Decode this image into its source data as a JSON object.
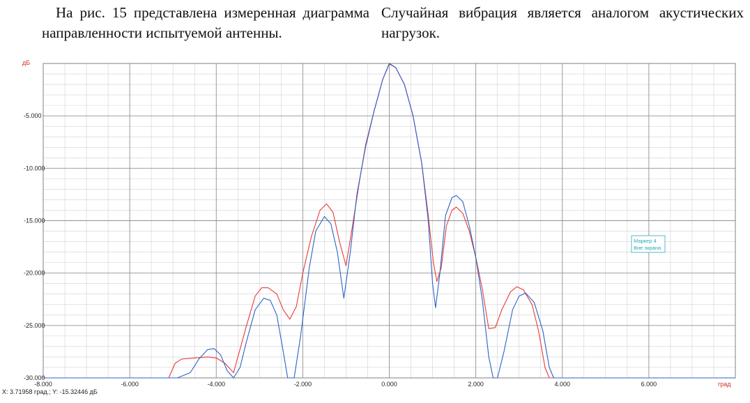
{
  "paragraphs": {
    "left": "На рис. 15 представлена измеренная диаграмма направленности испытуемой антенны.",
    "right": "Случайная вибрация является аналогом акустических нагрузок."
  },
  "chart_data": {
    "type": "line",
    "ylabel": "дБ",
    "xlabel": "град",
    "xlim": [
      -8,
      8
    ],
    "ylim": [
      -30,
      0
    ],
    "x_ticks": [
      "-8.000",
      "-6.000",
      "-4.000",
      "-2.000",
      "0.000",
      "2.000",
      "4.000",
      "6.000"
    ],
    "y_ticks": [
      "-5.000",
      "-10.000",
      "-15.000",
      "-20.000",
      "-25.000",
      "-30.000"
    ],
    "grid": true,
    "readout": "X: 3.71958 град.; Y: -15.32446 дБ",
    "marker_box": {
      "line1": "Маркер 4",
      "line2": "Вне экрана"
    },
    "colors": {
      "series_red": "#e83a3a",
      "series_blue": "#2c62c8",
      "grid": "#d0d0d0",
      "grid_major": "#909090",
      "axis_unit": "#d03020",
      "marker": "#2aa8b8"
    },
    "series": [
      {
        "color": "red",
        "points": [
          [
            -8,
            -30
          ],
          [
            -5.1,
            -30
          ],
          [
            -4.95,
            -28.6
          ],
          [
            -4.8,
            -28.2
          ],
          [
            -4.5,
            -28.1
          ],
          [
            -4.2,
            -28.0
          ],
          [
            -4.0,
            -28.1
          ],
          [
            -3.8,
            -28.6
          ],
          [
            -3.6,
            -29.5
          ],
          [
            -3.5,
            -28.0
          ],
          [
            -3.3,
            -25.0
          ],
          [
            -3.1,
            -22.2
          ],
          [
            -2.95,
            -21.4
          ],
          [
            -2.8,
            -21.4
          ],
          [
            -2.6,
            -22.0
          ],
          [
            -2.45,
            -23.5
          ],
          [
            -2.3,
            -24.4
          ],
          [
            -2.15,
            -23.2
          ],
          [
            -2.0,
            -20.0
          ],
          [
            -1.8,
            -16.5
          ],
          [
            -1.6,
            -14.0
          ],
          [
            -1.45,
            -13.4
          ],
          [
            -1.3,
            -14.2
          ],
          [
            -1.15,
            -17.0
          ],
          [
            -1.0,
            -19.3
          ],
          [
            -0.85,
            -15.5
          ],
          [
            -0.7,
            -11.5
          ],
          [
            -0.55,
            -7.8
          ],
          [
            -0.35,
            -4.5
          ],
          [
            -0.15,
            -1.5
          ],
          [
            0.0,
            -0.05
          ],
          [
            0.15,
            -0.4
          ],
          [
            0.35,
            -2.0
          ],
          [
            0.55,
            -5.0
          ],
          [
            0.75,
            -9.5
          ],
          [
            0.9,
            -14.5
          ],
          [
            1.02,
            -19.0
          ],
          [
            1.1,
            -20.8
          ],
          [
            1.2,
            -19.5
          ],
          [
            1.32,
            -15.5
          ],
          [
            1.45,
            -14.0
          ],
          [
            1.55,
            -13.7
          ],
          [
            1.7,
            -14.3
          ],
          [
            1.85,
            -16.0
          ],
          [
            2.0,
            -18.5
          ],
          [
            2.15,
            -21.5
          ],
          [
            2.3,
            -25.3
          ],
          [
            2.45,
            -25.2
          ],
          [
            2.6,
            -23.5
          ],
          [
            2.8,
            -21.8
          ],
          [
            2.95,
            -21.3
          ],
          [
            3.1,
            -21.6
          ],
          [
            3.3,
            -23.0
          ],
          [
            3.45,
            -25.5
          ],
          [
            3.6,
            -29.0
          ],
          [
            3.7,
            -30
          ],
          [
            8,
            -30
          ]
        ]
      },
      {
        "color": "blue",
        "points": [
          [
            -8,
            -30
          ],
          [
            -4.9,
            -30
          ],
          [
            -4.6,
            -29.5
          ],
          [
            -4.4,
            -28.2
          ],
          [
            -4.2,
            -27.3
          ],
          [
            -4.05,
            -27.2
          ],
          [
            -3.9,
            -27.8
          ],
          [
            -3.75,
            -29.3
          ],
          [
            -3.6,
            -30
          ],
          [
            -3.45,
            -29.0
          ],
          [
            -3.3,
            -26.5
          ],
          [
            -3.1,
            -23.5
          ],
          [
            -2.9,
            -22.4
          ],
          [
            -2.75,
            -22.6
          ],
          [
            -2.6,
            -24.0
          ],
          [
            -2.45,
            -27.5
          ],
          [
            -2.35,
            -30
          ],
          [
            -2.2,
            -30
          ],
          [
            -2.05,
            -26.0
          ],
          [
            -1.85,
            -19.5
          ],
          [
            -1.7,
            -16.0
          ],
          [
            -1.5,
            -14.6
          ],
          [
            -1.35,
            -15.3
          ],
          [
            -1.2,
            -18.0
          ],
          [
            -1.05,
            -22.4
          ],
          [
            -0.9,
            -18.0
          ],
          [
            -0.75,
            -12.5
          ],
          [
            -0.55,
            -8.0
          ],
          [
            -0.35,
            -4.5
          ],
          [
            -0.15,
            -1.5
          ],
          [
            0.0,
            0.0
          ],
          [
            0.15,
            -0.4
          ],
          [
            0.35,
            -2.0
          ],
          [
            0.55,
            -5.0
          ],
          [
            0.75,
            -9.5
          ],
          [
            0.9,
            -15.0
          ],
          [
            1.0,
            -21.0
          ],
          [
            1.07,
            -23.3
          ],
          [
            1.17,
            -20.0
          ],
          [
            1.3,
            -14.5
          ],
          [
            1.45,
            -12.8
          ],
          [
            1.55,
            -12.6
          ],
          [
            1.7,
            -13.2
          ],
          [
            1.85,
            -15.5
          ],
          [
            2.0,
            -18.5
          ],
          [
            2.15,
            -22.5
          ],
          [
            2.3,
            -28.0
          ],
          [
            2.4,
            -30
          ],
          [
            2.5,
            -30
          ],
          [
            2.65,
            -27.5
          ],
          [
            2.85,
            -23.5
          ],
          [
            3.0,
            -22.2
          ],
          [
            3.15,
            -21.9
          ],
          [
            3.35,
            -22.8
          ],
          [
            3.55,
            -25.5
          ],
          [
            3.7,
            -29.0
          ],
          [
            3.8,
            -30
          ],
          [
            8,
            -30
          ]
        ]
      }
    ]
  }
}
